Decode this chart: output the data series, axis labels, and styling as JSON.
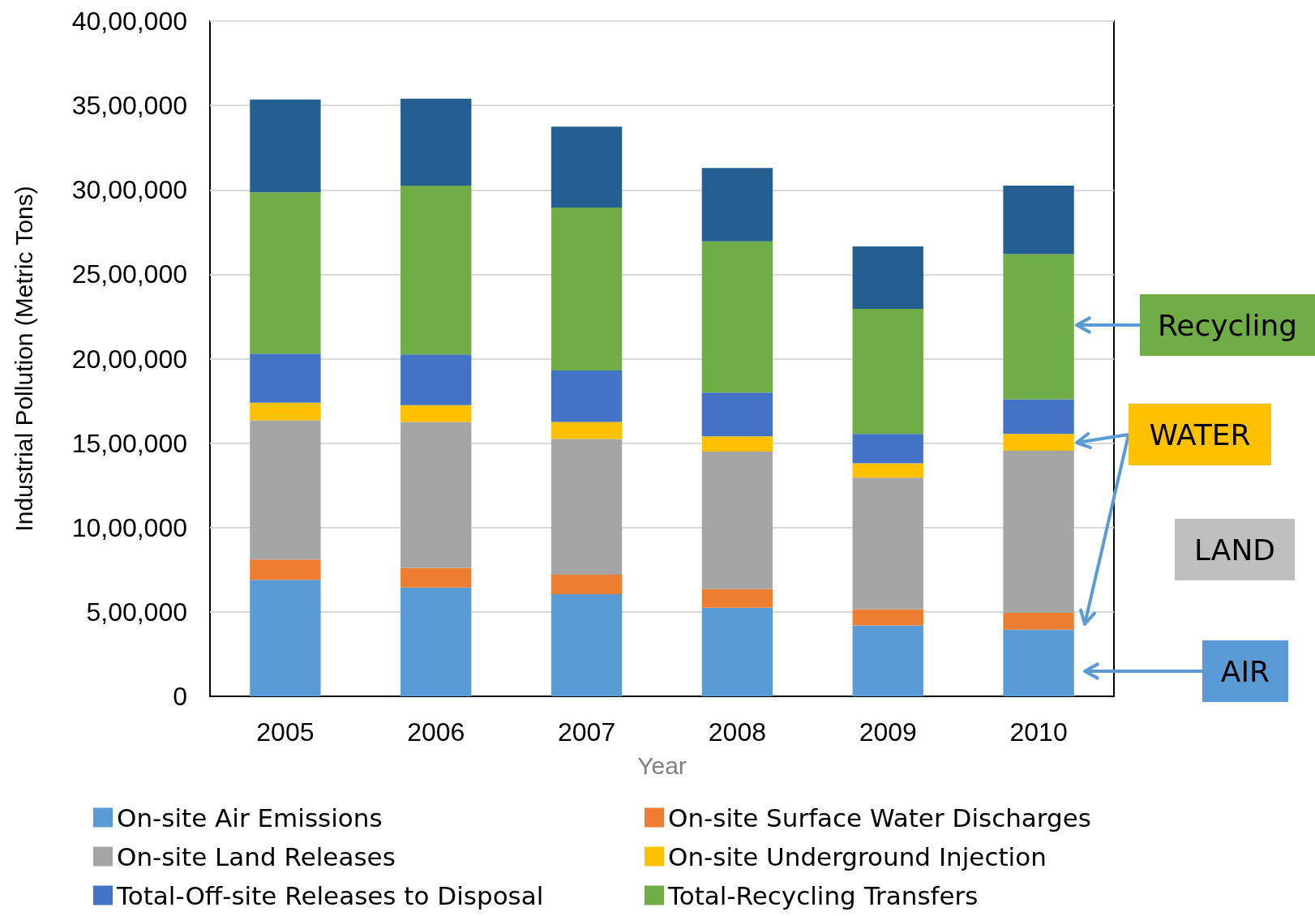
{
  "chart_data": {
    "type": "bar",
    "stacked": true,
    "xlabel": "Year",
    "ylabel": "Industrial Pollution (Metric Tons)",
    "categories": [
      "2005",
      "2006",
      "2007",
      "2008",
      "2009",
      "2010"
    ],
    "series": [
      {
        "name": "On-site Air Emissions",
        "color": "#5b9bd5",
        "values": [
          690000,
          645000,
          605000,
          525000,
          420000,
          395000
        ]
      },
      {
        "name": "On-site Surface Water Discharges",
        "color": "#ed7d31",
        "values": [
          120000,
          115000,
          115000,
          110000,
          95000,
          100000
        ]
      },
      {
        "name": "On-site Land Releases",
        "color": "#a5a5a5",
        "values": [
          825000,
          865000,
          805000,
          815000,
          780000,
          960000
        ]
      },
      {
        "name": "On-site Underground Injection",
        "color": "#ffc000",
        "values": [
          105000,
          100000,
          100000,
          90000,
          85000,
          100000
        ]
      },
      {
        "name": "Total-Off-site Releases to Disposal",
        "color": "#4472c4",
        "values": [
          290000,
          300000,
          305000,
          260000,
          175000,
          205000
        ]
      },
      {
        "name": "Total-Recycling Transfers",
        "color": "#70ad47",
        "values": [
          955000,
          1000000,
          965000,
          895000,
          740000,
          860000
        ]
      },
      {
        "color": "#255e91",
        "values": [
          550000,
          515000,
          480000,
          435000,
          370000,
          405000
        ]
      }
    ],
    "ylim": [
      0,
      4000000
    ],
    "yticks": [
      {
        "value": 0,
        "label": "0"
      },
      {
        "value": 500000,
        "label": "5,00,000"
      },
      {
        "value": 1000000,
        "label": "10,00,000"
      },
      {
        "value": 1500000,
        "label": "15,00,000"
      },
      {
        "value": 2000000,
        "label": "20,00,000"
      },
      {
        "value": 2500000,
        "label": "25,00,000"
      },
      {
        "value": 3000000,
        "label": "30,00,000"
      },
      {
        "value": 3500000,
        "label": "35,00,000"
      },
      {
        "value": 4000000,
        "label": "40,00,000"
      }
    ],
    "grid": "y",
    "legend": "bottom",
    "annotations": [
      "Recycling",
      "WATER",
      "LAND",
      "AIR"
    ]
  }
}
